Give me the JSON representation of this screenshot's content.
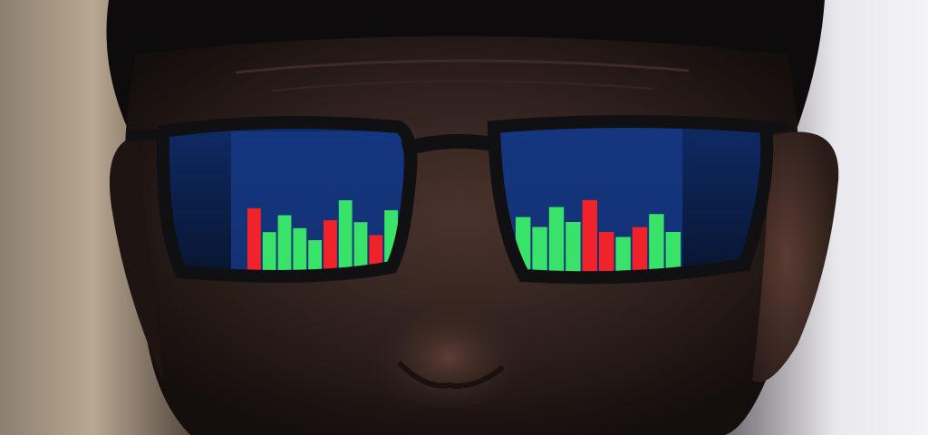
{
  "scene": {
    "subject": "face-with-glasses",
    "reflection": {
      "content": "candlestick-bars",
      "colors": {
        "up": "#39e36a",
        "down": "#f0232b",
        "screen": "#173a86"
      },
      "left_lens_bars": [
        {
          "color": "down",
          "level": 0.62
        },
        {
          "color": "up",
          "level": 0.38
        },
        {
          "color": "up",
          "level": 0.55
        },
        {
          "color": "up",
          "level": 0.42
        },
        {
          "color": "up",
          "level": 0.3
        },
        {
          "color": "down",
          "level": 0.5
        },
        {
          "color": "up",
          "level": 0.7
        },
        {
          "color": "up",
          "level": 0.48
        },
        {
          "color": "down",
          "level": 0.35
        },
        {
          "color": "up",
          "level": 0.6
        }
      ],
      "right_lens_bars": [
        {
          "color": "up",
          "level": 0.55
        },
        {
          "color": "up",
          "level": 0.45
        },
        {
          "color": "up",
          "level": 0.65
        },
        {
          "color": "up",
          "level": 0.5
        },
        {
          "color": "down",
          "level": 0.72
        },
        {
          "color": "down",
          "level": 0.4
        },
        {
          "color": "up",
          "level": 0.35
        },
        {
          "color": "down",
          "level": 0.45
        },
        {
          "color": "up",
          "level": 0.58
        },
        {
          "color": "up",
          "level": 0.4
        }
      ]
    },
    "palette": {
      "background_left": "#b9a892",
      "background_right": "#e9e8ec",
      "skin_dark": "#2a1c19",
      "skin_mid": "#5a3d34",
      "frame": "#101012"
    }
  }
}
